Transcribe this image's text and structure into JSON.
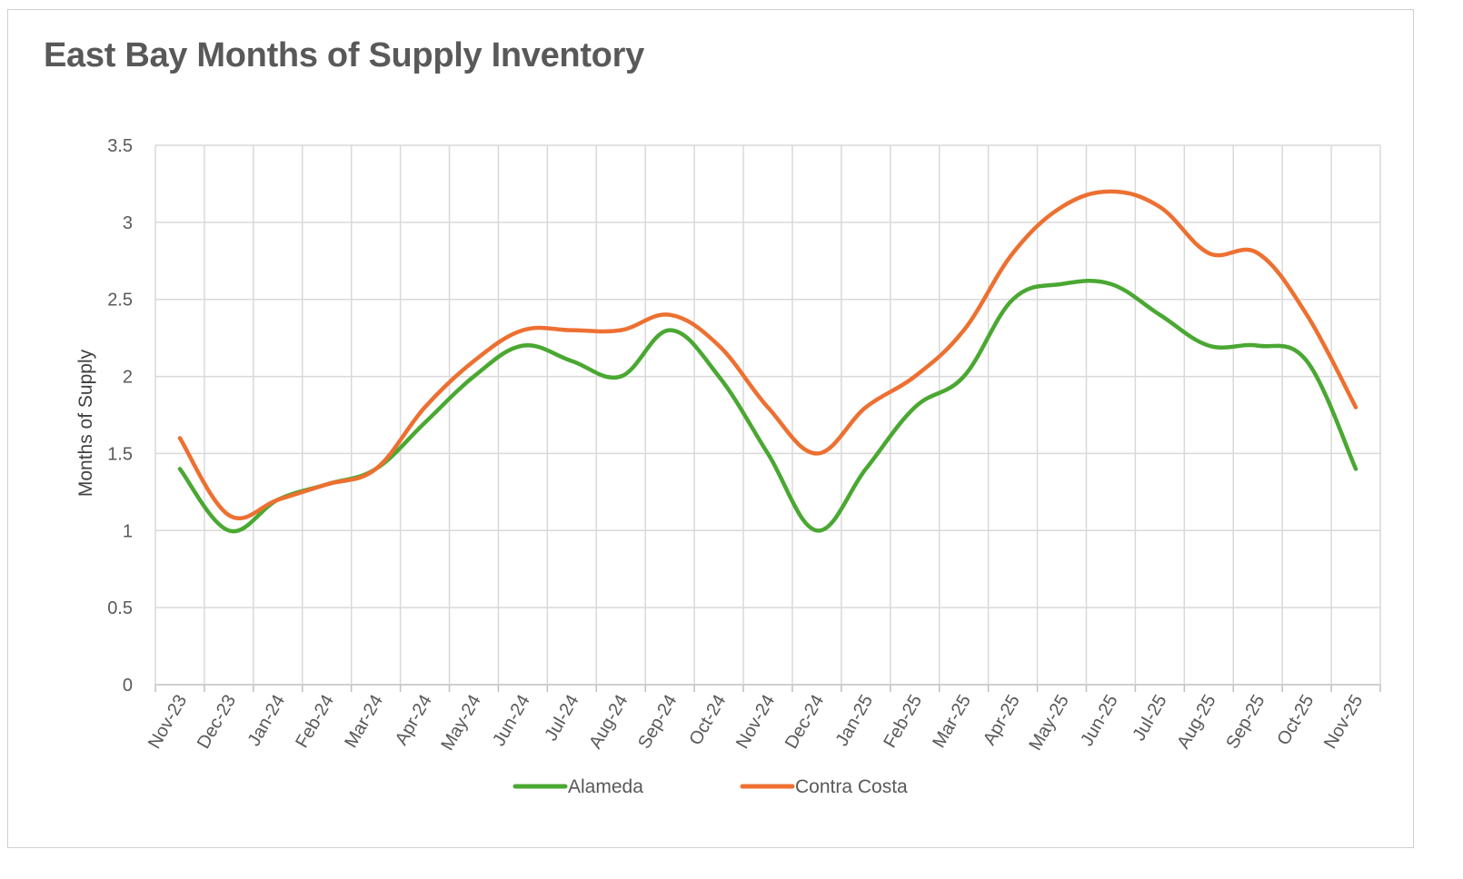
{
  "chart_data": {
    "type": "line",
    "title": "East Bay Months of Supply Inventory",
    "xlabel": "",
    "ylabel": "Months of Supply",
    "categories": [
      "Nov-23",
      "Dec-23",
      "Jan-24",
      "Feb-24",
      "Mar-24",
      "Apr-24",
      "May-24",
      "Jun-24",
      "Jul-24",
      "Aug-24",
      "Sep-24",
      "Oct-24",
      "Nov-24",
      "Dec-24",
      "Jan-25",
      "Feb-25",
      "Mar-25",
      "Apr-25",
      "May-25",
      "Jun-25",
      "Jul-25",
      "Aug-25",
      "Sep-25",
      "Oct-25",
      "Nov-25"
    ],
    "ylim": [
      0,
      3.5
    ],
    "yticks": [
      "0",
      "0.5",
      "1",
      "1.5",
      "2",
      "2.5",
      "3",
      "3.5"
    ],
    "grid": true,
    "legend": "bottom",
    "series": [
      {
        "name": "Alameda",
        "color": "#4aa832",
        "values": [
          1.4,
          1.0,
          1.2,
          1.3,
          1.4,
          1.7,
          2.0,
          2.2,
          2.1,
          2.0,
          2.3,
          2.0,
          1.5,
          1.0,
          1.4,
          1.8,
          2.0,
          2.5,
          2.6,
          2.6,
          2.4,
          2.2,
          2.2,
          2.1,
          1.4
        ]
      },
      {
        "name": "Contra Costa",
        "color": "#ed7031",
        "values": [
          1.6,
          1.1,
          1.2,
          1.3,
          1.4,
          1.8,
          2.1,
          2.3,
          2.3,
          2.3,
          2.4,
          2.2,
          1.8,
          1.5,
          1.8,
          2.0,
          2.3,
          2.8,
          3.1,
          3.2,
          3.1,
          2.8,
          2.8,
          2.4,
          1.8
        ]
      }
    ]
  }
}
